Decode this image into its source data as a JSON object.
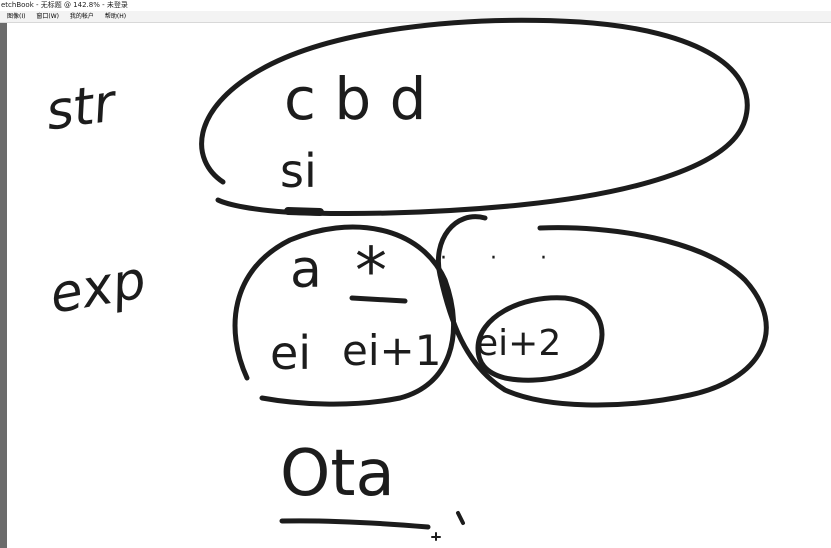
{
  "window": {
    "title": "etchBook - 无标题 @ 142.8% - 未登录"
  },
  "menu": {
    "items": [
      "图像(I)",
      "窗口(W)",
      "我的帐户",
      "帮助(H)"
    ]
  },
  "canvas": {
    "labels": {
      "str": "str",
      "exp": "exp",
      "cbd": "c b d",
      "si": "si",
      "a": "a",
      "star": "*",
      "dots": "· · ·",
      "ei": "ei",
      "ei1": "ei+1",
      "ei2": "ei+2",
      "ota": "Ota"
    }
  },
  "colors": {
    "ink": "#1c1c1c",
    "menubar": "#f3f3f3",
    "left_edge": "#6b6b6b"
  }
}
